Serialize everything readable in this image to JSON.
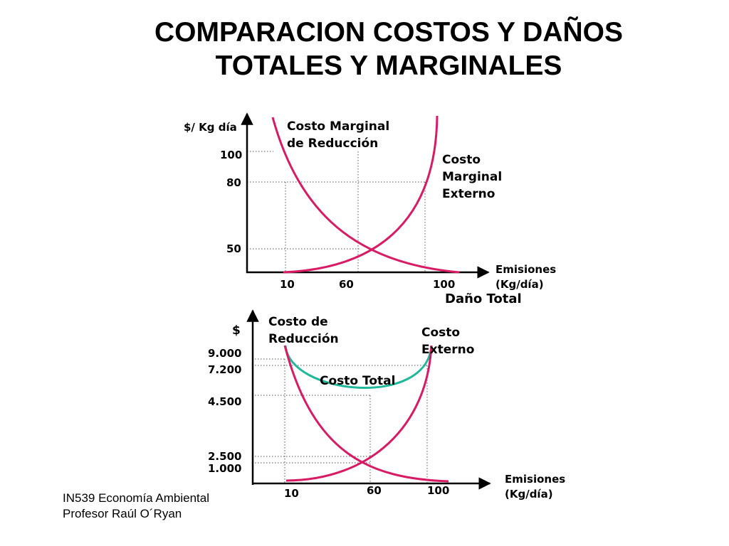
{
  "title": {
    "line1": "COMPARACION COSTOS Y DAÑOS",
    "line2": "TOTALES Y MARGINALES"
  },
  "top_chart": {
    "y_axis_label": "$/ Kg día",
    "y_ticks": [
      "100",
      "80",
      "50"
    ],
    "x_ticks": [
      "10",
      "60",
      "100"
    ],
    "x_axis_label": [
      "Emisiones",
      "(Kg/día)"
    ],
    "curve_reduction_label": [
      "Costo Marginal",
      "de Reducción"
    ],
    "curve_external_label": [
      "Costo",
      "Marginal",
      "Externo"
    ],
    "colors": {
      "curves": "#d81b64",
      "axes": "#000000",
      "guides": "#777777"
    }
  },
  "section_label": "Daño Total",
  "bottom_chart": {
    "y_axis_label": "$",
    "y_ticks": [
      "9.000",
      "7.200",
      "4.500",
      "2.500",
      "1.000"
    ],
    "x_ticks": [
      "10",
      "60",
      "100"
    ],
    "x_axis_label": [
      "Emisiones",
      "(Kg/día)"
    ],
    "curve_reduction_label": [
      "Costo de",
      "Reducción"
    ],
    "curve_external_label": [
      "Costo",
      "Externo"
    ],
    "curve_total_label": "Costo Total",
    "colors": {
      "curves": "#d81b64",
      "total": "#1fb89a",
      "axes": "#000000",
      "guides": "#777777"
    }
  },
  "footer": {
    "course": "IN539 Economía Ambiental",
    "professor": "Profesor Raúl O´Ryan"
  }
}
